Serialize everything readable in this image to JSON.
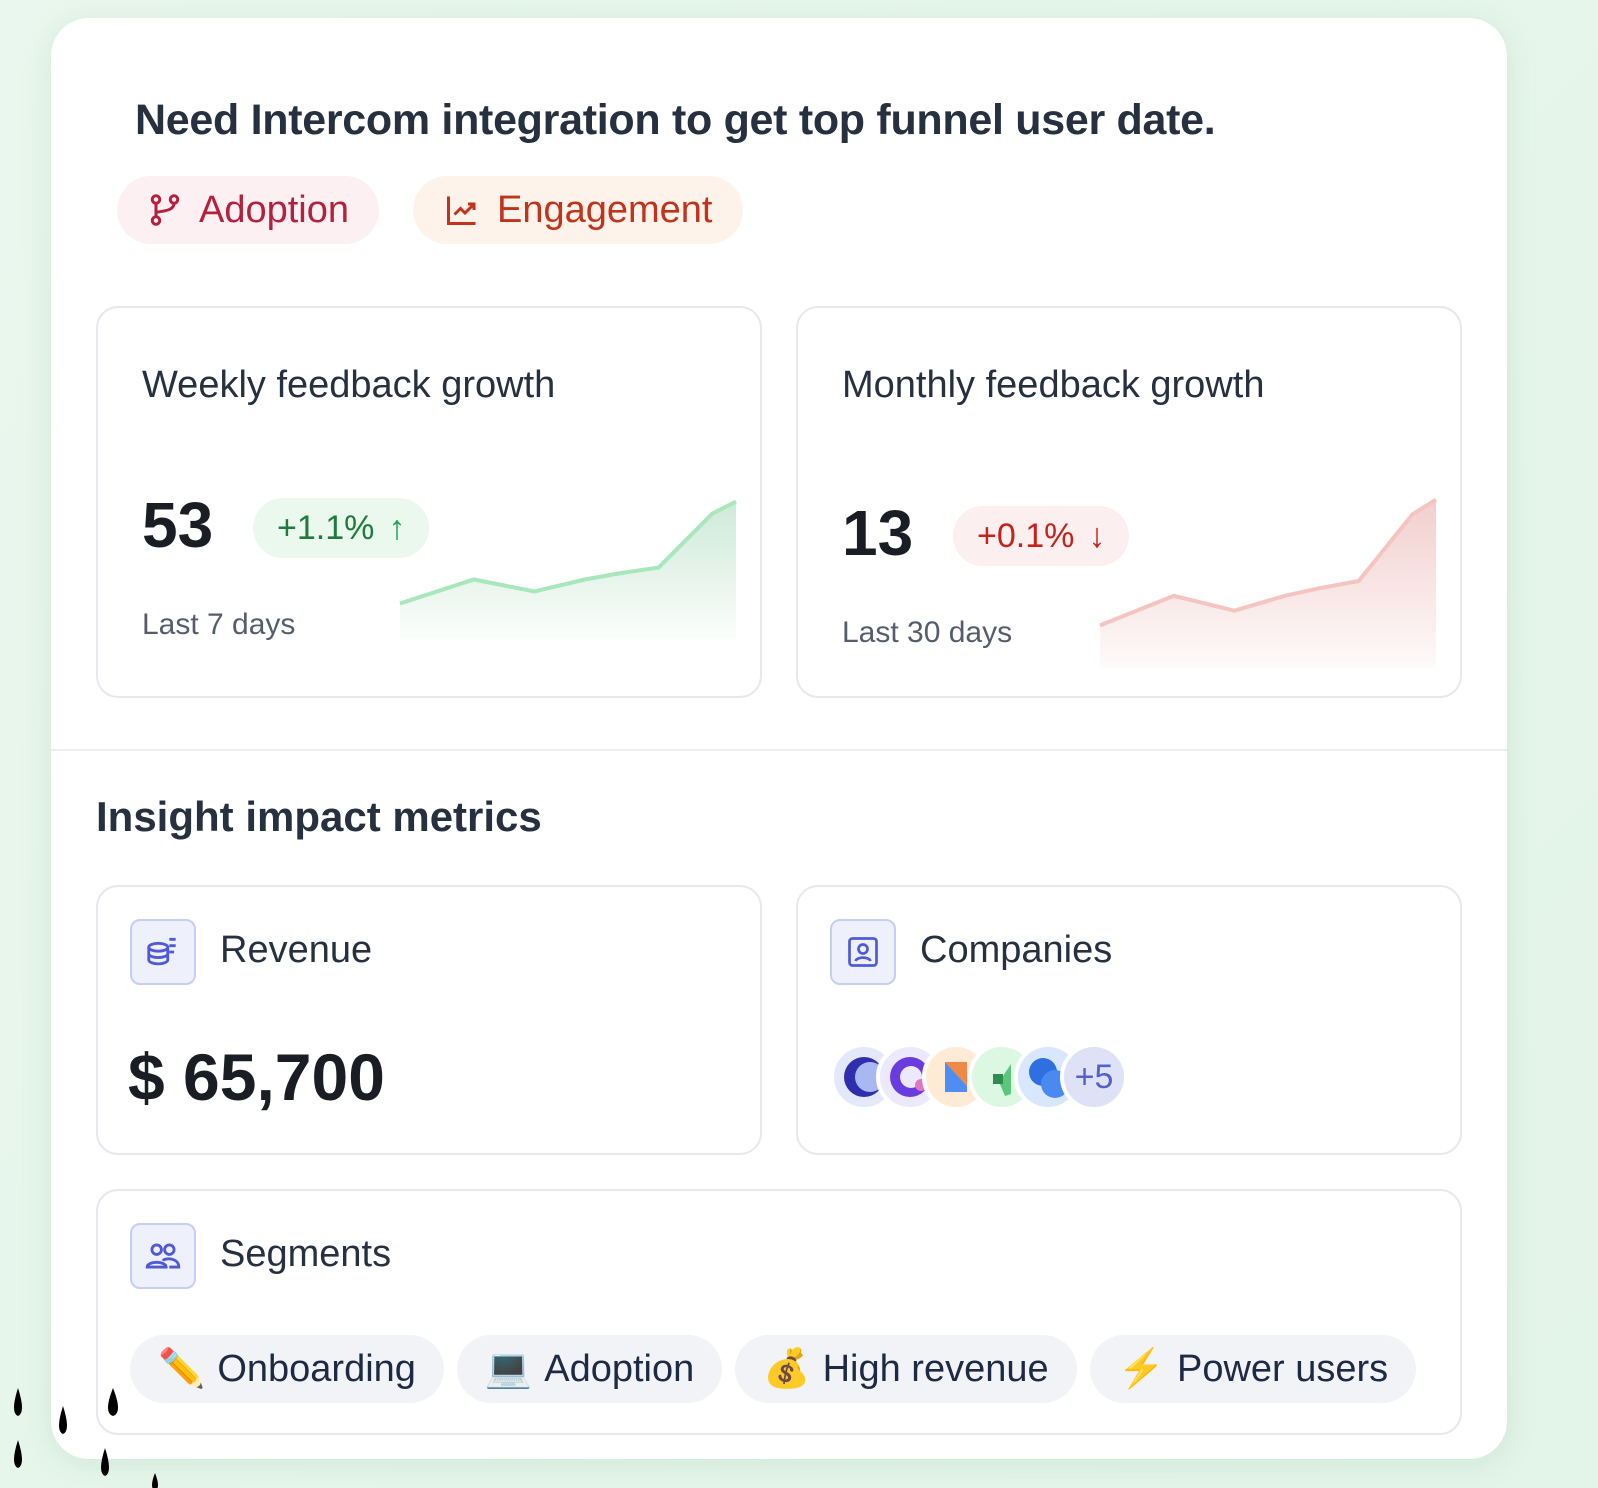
{
  "title": "Need Intercom integration to get top funnel user date.",
  "tags": [
    {
      "label": "Adoption",
      "icon": "git-branch-icon"
    },
    {
      "label": "Engagement",
      "icon": "line-chart-icon"
    }
  ],
  "growth": [
    {
      "title": "Weekly feedback growth",
      "value": "53",
      "change": "+1.1%",
      "direction": "up",
      "period": "Last 7 days",
      "color": "#22a04b",
      "series": [
        0.1,
        0.3,
        0.2,
        0.3,
        0.35,
        0.4,
        0.85,
        0.95
      ]
    },
    {
      "title": "Monthly feedback growth",
      "value": "13",
      "change": "+0.1%",
      "direction": "down",
      "period": "Last 30 days",
      "color": "#c4231c",
      "series": [
        0.1,
        0.3,
        0.2,
        0.3,
        0.35,
        0.4,
        0.85,
        0.95
      ]
    }
  ],
  "impact": {
    "heading": "Insight impact metrics",
    "revenue": {
      "label": "Revenue",
      "value": "$ 65,700"
    },
    "companies": {
      "label": "Companies",
      "more": "+5"
    },
    "segments": {
      "label": "Segments",
      "items": [
        {
          "emoji": "✏️",
          "label": "Onboarding"
        },
        {
          "emoji": "💻",
          "label": "Adoption"
        },
        {
          "emoji": "💰",
          "label": "High revenue"
        },
        {
          "emoji": "⚡",
          "label": "Power users"
        }
      ]
    }
  }
}
